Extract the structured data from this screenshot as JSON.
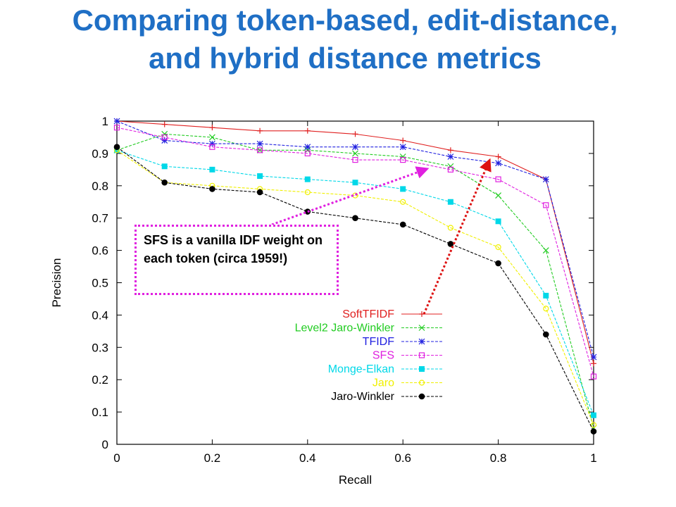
{
  "slide": {
    "title": "Comparing token-based, edit-distance, and hybrid distance metrics",
    "callout_text": "SFS is a vanilla IDF weight on each token (circa 1959!)",
    "callout_color": "#e020e0",
    "arrow_callout_color": "#e020e0",
    "arrow_legend_color": "#dd1111"
  },
  "chart_data": {
    "type": "line",
    "xlabel": "Recall",
    "ylabel": "Precision",
    "xlim": [
      0,
      1
    ],
    "ylim": [
      0,
      1
    ],
    "xticks": [
      "0",
      "0.2",
      "0.4",
      "0.6",
      "0.8",
      "1"
    ],
    "yticks": [
      "0",
      "0.1",
      "0.2",
      "0.3",
      "0.4",
      "0.5",
      "0.6",
      "0.7",
      "0.8",
      "0.9",
      "1"
    ],
    "grid": false,
    "legend_position": "center-right",
    "x": [
      0,
      0.1,
      0.2,
      0.3,
      0.4,
      0.5,
      0.6,
      0.7,
      0.8,
      0.9,
      1.0
    ],
    "series": [
      {
        "name": "SoftTFIDF",
        "color": "#e02020",
        "marker": "plus",
        "values": [
          1.0,
          0.99,
          0.98,
          0.97,
          0.97,
          0.96,
          0.94,
          0.91,
          0.89,
          0.82,
          0.25
        ]
      },
      {
        "name": "Level2 Jaro-Winkler",
        "color": "#22cc22",
        "marker": "x",
        "values": [
          0.91,
          0.96,
          0.95,
          0.91,
          0.91,
          0.9,
          0.89,
          0.86,
          0.77,
          0.6,
          0.05
        ]
      },
      {
        "name": "TFIDF",
        "color": "#2020e0",
        "marker": "star",
        "values": [
          1.0,
          0.94,
          0.93,
          0.93,
          0.92,
          0.92,
          0.92,
          0.89,
          0.87,
          0.82,
          0.27
        ]
      },
      {
        "name": "SFS",
        "color": "#e020e0",
        "marker": "square-open",
        "values": [
          0.98,
          0.95,
          0.92,
          0.91,
          0.9,
          0.88,
          0.88,
          0.85,
          0.82,
          0.74,
          0.21
        ]
      },
      {
        "name": "Monge-Elkan",
        "color": "#00d8e8",
        "marker": "square-filled",
        "values": [
          0.91,
          0.86,
          0.85,
          0.83,
          0.82,
          0.81,
          0.79,
          0.75,
          0.69,
          0.46,
          0.09
        ]
      },
      {
        "name": "Jaro",
        "color": "#f0f000",
        "marker": "circle-open",
        "values": [
          0.91,
          0.81,
          0.8,
          0.79,
          0.78,
          0.77,
          0.75,
          0.67,
          0.61,
          0.42,
          0.06
        ]
      },
      {
        "name": "Jaro-Winkler",
        "color": "#000000",
        "marker": "circle-filled",
        "values": [
          0.92,
          0.81,
          0.79,
          0.78,
          0.72,
          0.7,
          0.68,
          0.62,
          0.56,
          0.34,
          0.04
        ]
      }
    ]
  }
}
